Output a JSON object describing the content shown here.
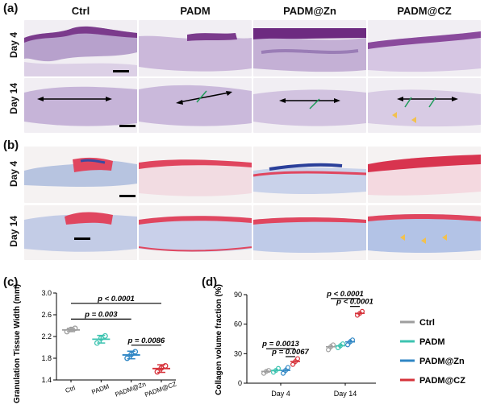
{
  "panels": {
    "a": {
      "label": "(a)"
    },
    "b": {
      "label": "(b)"
    },
    "c": {
      "label": "(c)"
    },
    "d": {
      "label": "(d)"
    }
  },
  "groups": [
    "Ctrl",
    "PADM",
    "PADM@Zn",
    "PADM@CZ"
  ],
  "rows": [
    "Day 4",
    "Day 14"
  ],
  "colors": {
    "Ctrl": "#9e9e9e",
    "PADM": "#3cc3b0",
    "PADM@Zn": "#2f86c4",
    "PADM@CZ": "#d6323a",
    "he_tissue": "#b7a1cc",
    "he_epidermis": "#7b3b8c",
    "mt_collagen": "#9db3d9",
    "mt_muscle": "#e0465f"
  },
  "chart_data": [
    {
      "id": "c",
      "type": "scatter",
      "ylabel": "Granulation Tissue Width (mm)",
      "categories": [
        "Ctrl",
        "PADM",
        "PADM@Zn",
        "PADM@CZ"
      ],
      "ylim": [
        1.4,
        3.0
      ],
      "yticks": [
        "1.4",
        "1.8",
        "2.2",
        "2.6",
        "3.0"
      ],
      "series": [
        {
          "name": "Ctrl",
          "mean": 2.32,
          "sd": 0.03,
          "points": [
            2.29,
            2.33,
            2.35
          ]
        },
        {
          "name": "PADM",
          "mean": 2.15,
          "sd": 0.07,
          "points": [
            2.08,
            2.17,
            2.21
          ]
        },
        {
          "name": "PADM@Zn",
          "mean": 1.86,
          "sd": 0.07,
          "points": [
            1.8,
            1.87,
            1.92
          ]
        },
        {
          "name": "PADM@CZ",
          "mean": 1.61,
          "sd": 0.07,
          "points": [
            1.55,
            1.62,
            1.66
          ]
        }
      ],
      "brackets": [
        {
          "from": 0,
          "to": 3,
          "label": "p < 0.0001",
          "y": 2.81
        },
        {
          "from": 0,
          "to": 2,
          "label": "p = 0.003",
          "y": 2.52
        },
        {
          "from": 2,
          "to": 3,
          "label": "p = 0.0086",
          "y": 2.04
        }
      ]
    },
    {
      "id": "d",
      "type": "scatter",
      "ylabel": "Collagen volume fraction (%)",
      "categories": [
        "Day 4",
        "Day 14"
      ],
      "ylim": [
        0,
        90
      ],
      "yticks": [
        "0",
        "30",
        "60",
        "90"
      ],
      "legend_position": "right",
      "series": [
        {
          "name": "Ctrl",
          "means": [
            12,
            37
          ],
          "sd": [
            2,
            3
          ],
          "points": [
            [
              10,
              12,
              13
            ],
            [
              34,
              37,
              39
            ]
          ]
        },
        {
          "name": "PADM",
          "means": [
            13,
            38
          ],
          "sd": [
            2,
            3
          ],
          "points": [
            [
              11,
              13,
              15
            ],
            [
              36,
              38,
              40
            ]
          ]
        },
        {
          "name": "PADM@Zn",
          "means": [
            13,
            42
          ],
          "sd": [
            3,
            3
          ],
          "points": [
            [
              10,
              13,
              16
            ],
            [
              39,
              42,
              44
            ]
          ]
        },
        {
          "name": "PADM@CZ",
          "means": [
            22,
            71
          ],
          "sd": [
            3,
            2
          ],
          "points": [
            [
              19,
              22,
              25
            ],
            [
              69,
              71,
              73
            ]
          ]
        }
      ],
      "brackets": [
        {
          "group": 0,
          "from": 0,
          "to": 3,
          "label": "p = 0.0013",
          "y": 35
        },
        {
          "group": 0,
          "from": 2,
          "to": 3,
          "label": "p = 0.0067",
          "y": 27
        },
        {
          "group": 1,
          "from": 0,
          "to": 3,
          "label": "p < 0.0001",
          "y": 86
        },
        {
          "group": 1,
          "from": 2,
          "to": 3,
          "label": "p < 0.0001",
          "y": 78
        }
      ]
    }
  ]
}
